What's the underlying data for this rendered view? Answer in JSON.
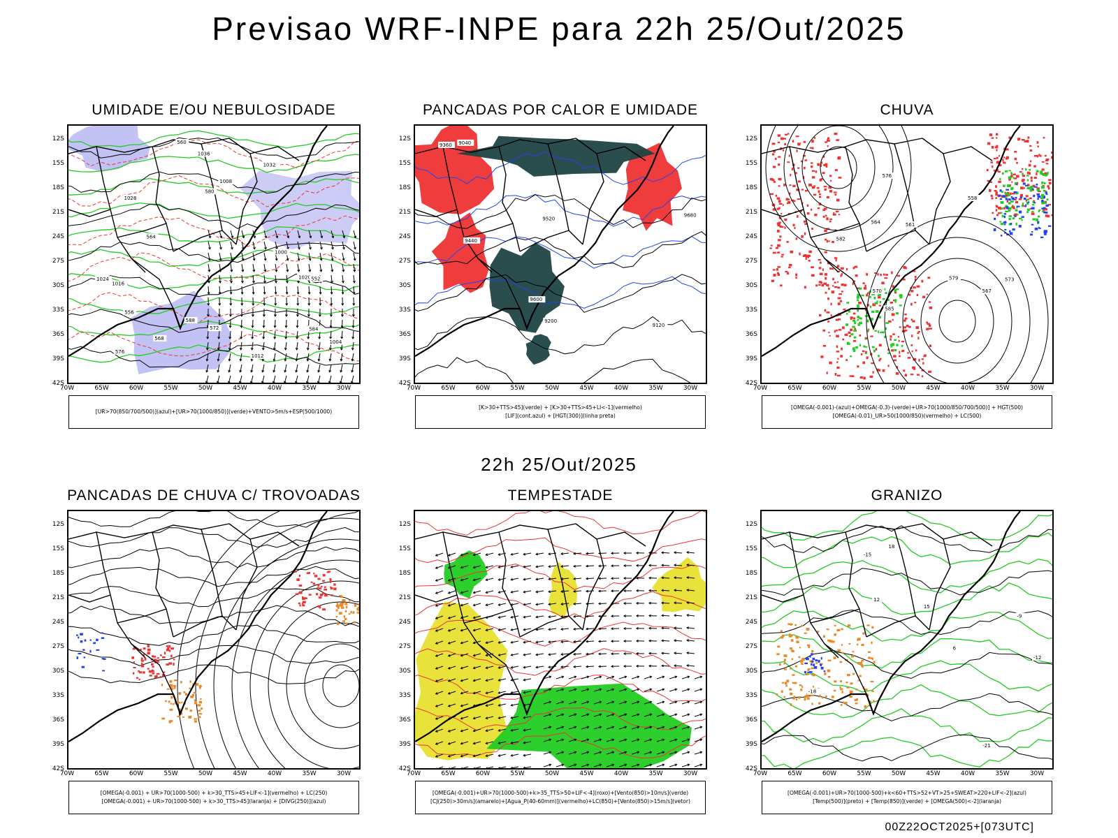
{
  "title": "Previsao WRF-INPE  para 22h 25/Out/2025",
  "mid_title": "22h 25/Out/2025",
  "footer": "00Z22OCT2025+[073UTC]",
  "axes": {
    "lat_labels": [
      "12S",
      "15S",
      "18S",
      "21S",
      "24S",
      "27S",
      "30S",
      "33S",
      "36S",
      "39S",
      "42S"
    ],
    "lon_labels": [
      "70W",
      "65W",
      "60W",
      "55W",
      "50W",
      "45W",
      "40W",
      "35W",
      "30W"
    ]
  },
  "colors": {
    "blue_fill": "#9999ee",
    "green": "#22cc22",
    "red": "#ee3333",
    "dark_teal": "#1f4545",
    "yellow": "#e8e030",
    "orange": "#e88a2a",
    "blue": "#2244ee"
  },
  "panels": [
    {
      "title": "UMIDADE E/OU NEBULOSIDADE",
      "legend_lines": [
        "[UR>70(850/700/500)](azul)+[UR>70(1000/850)](verde)+VENTO>5m/s+ESP(500/1000)"
      ],
      "map_labels": [
        "1008",
        "1012",
        "1016",
        "1020",
        "1024",
        "1028",
        "1032",
        "1000",
        "1004",
        "1036",
        "576",
        "584",
        "588",
        "580",
        "564",
        "552",
        "556",
        "560",
        "568",
        "572"
      ]
    },
    {
      "title": "PANCADAS POR CALOR E UMIDADE",
      "legend_lines": [
        "[K>30+TTS>45](verde) + [K>30+TTS>45+LI<-1](vermelho)",
        "[LIF](cont.azul) + [HGT(300)](linha preta)"
      ],
      "map_labels": [
        "9600",
        "9520",
        "9440",
        "9360",
        "9200",
        "9120",
        "9040",
        "9680"
      ]
    },
    {
      "title": "CHUVA",
      "legend_lines": [
        "[OMEGA(-0.001)-(azul)+OMEGA(-0.3)-(verde)+UR>70(1000/850/700/500)] + HGT(500)",
        "[OMEGA(-0.01)_UR>50(1000/850)(vermelho) + LC(500)"
      ],
      "map_labels": [
        "582",
        "585",
        "579",
        "576",
        "573",
        "570",
        "567",
        "564",
        "561",
        "558"
      ]
    },
    {
      "title": "PANCADAS DE CHUVA C/ TROVOADAS",
      "legend_lines": [
        "[OMEGA(-0.001) + UR>70(1000-500) + k>30_TTS>45+LIF<-1](vermelho) + LC(250)",
        "[OMEGA(-0.001) + UR>70(1000-500) + k>30_TTS>45](laranja) + [DIVG(250)](azul)"
      ],
      "map_labels": []
    },
    {
      "title": "TEMPESTADE",
      "legend_lines": [
        "[OMEGA(-0.001)+UR>70(1000-500)+k>35_TTS>50+LIF<-4](roxo)+[Vento(850)>10m/s](verde)",
        "[CJ(250)>30m/s](amarelo)+[Agua_P(40-60mm)](vermelho)+LC(850)+[Vento(850)>15m/s](vetor)"
      ],
      "map_labels": []
    },
    {
      "title": "GRANIZO",
      "legend_lines": [
        "[OMEGA(-0.001)+UR>70(1000-500)+k<60+TTS>52+VT>25+SWEAT>220+LIF<-2](azul)",
        "[Temp(500)](preto) + [Temp(850)](verde) + [OMEGA(500)<-2](laranja)"
      ],
      "map_labels": [
        "-12",
        "-15",
        "-18",
        "-21",
        "-9",
        "15",
        "12",
        "18",
        "6"
      ]
    }
  ]
}
